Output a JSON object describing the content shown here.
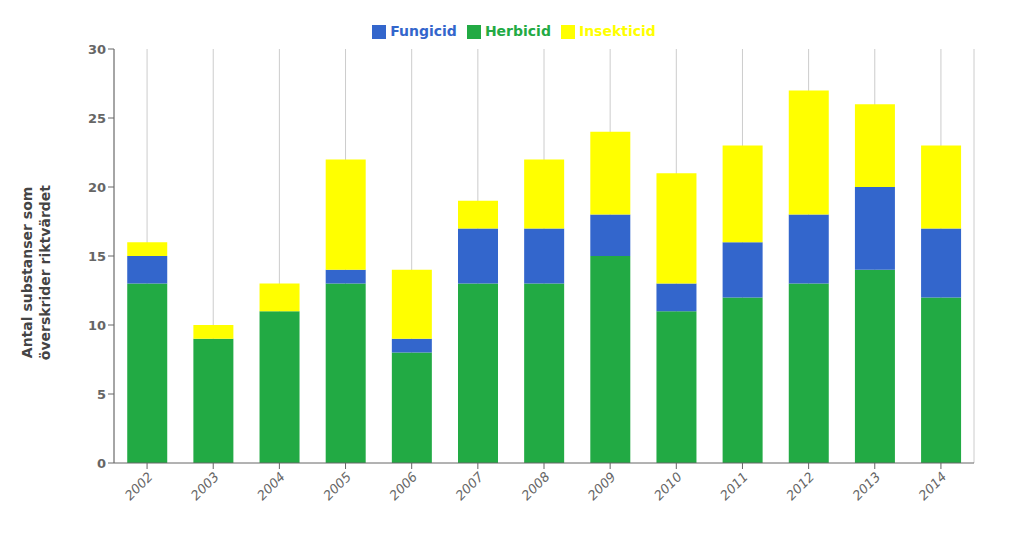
{
  "chart_data": {
    "type": "bar",
    "ylabel": "Antal substanser som\növerskrider riktvärdet",
    "categories": [
      "2002",
      "2003",
      "2004",
      "2005",
      "2006",
      "2007",
      "2008",
      "2009",
      "2010",
      "2011",
      "2012",
      "2013",
      "2014"
    ],
    "series": [
      {
        "name": "Herbicid",
        "color": "#22AA44",
        "values": [
          13,
          9,
          11,
          13,
          8,
          13,
          13,
          15,
          11,
          12,
          13,
          14,
          12
        ]
      },
      {
        "name": "Fungicid",
        "color": "#3366CC",
        "values": [
          2,
          0,
          0,
          1,
          1,
          4,
          4,
          3,
          2,
          4,
          5,
          6,
          5
        ]
      },
      {
        "name": "Insekticid",
        "color": "#FFFF00",
        "values": [
          1,
          1,
          2,
          8,
          5,
          2,
          5,
          6,
          8,
          7,
          9,
          6,
          6
        ]
      }
    ],
    "ylim": [
      0,
      30
    ],
    "yticks": [
      0,
      5,
      10,
      15,
      20,
      25,
      30
    ],
    "stacked": true,
    "grid": "x",
    "legend": "top"
  }
}
